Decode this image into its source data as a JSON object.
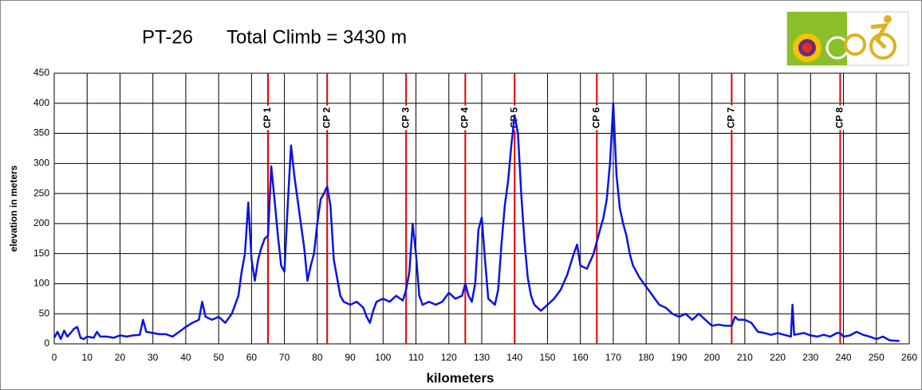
{
  "chart_data": {
    "type": "line",
    "title": "PT-26",
    "subtitle": "Total Climb = 3430 m",
    "x_label": "kilometers",
    "y_label": "elevation in meters",
    "xlim": [
      0,
      260
    ],
    "ylim": [
      0,
      450
    ],
    "xticks": [
      0,
      10,
      20,
      30,
      40,
      50,
      60,
      70,
      80,
      90,
      100,
      110,
      120,
      130,
      140,
      150,
      160,
      170,
      180,
      190,
      200,
      210,
      220,
      230,
      240,
      250,
      260
    ],
    "yticks": [
      0,
      50,
      100,
      150,
      200,
      250,
      300,
      350,
      400,
      450
    ],
    "grid": true,
    "checkpoints": {
      "color": "#e00000",
      "labels": [
        "CP 1",
        "CP 2",
        "CP 3",
        "CP 4",
        "CP 5",
        "CP 6",
        "CP 7",
        "CP 8"
      ],
      "x": [
        65,
        83,
        107,
        125,
        140,
        165,
        206,
        239
      ]
    },
    "series": [
      {
        "name": "elevation",
        "color": "#0a14e6",
        "x": [
          0,
          1,
          2,
          3,
          4,
          5,
          6,
          7,
          8,
          9,
          10,
          12,
          13,
          14,
          16,
          18,
          20,
          22,
          24,
          26,
          27,
          28,
          30,
          32,
          34,
          36,
          38,
          40,
          42,
          44,
          45,
          46,
          48,
          50,
          52,
          54,
          55,
          56,
          57,
          58,
          59,
          60,
          61,
          62,
          63,
          64,
          65,
          66,
          67,
          68,
          69,
          70,
          71,
          72,
          73,
          74,
          75,
          76,
          77,
          78,
          79,
          80,
          81,
          82,
          83,
          84,
          85,
          86,
          87,
          88,
          90,
          92,
          94,
          95,
          96,
          97,
          98,
          100,
          102,
          104,
          106,
          107,
          108,
          109,
          110,
          111,
          112,
          114,
          116,
          118,
          120,
          122,
          124,
          125,
          126,
          127,
          128,
          129,
          130,
          131,
          132,
          133,
          134,
          135,
          136,
          137,
          138,
          139,
          140,
          141,
          142,
          143,
          144,
          145,
          146,
          148,
          150,
          152,
          154,
          156,
          158,
          159,
          160,
          162,
          164,
          165,
          166,
          167,
          168,
          169,
          170,
          171,
          172,
          173,
          174,
          175,
          176,
          178,
          180,
          182,
          184,
          186,
          188,
          190,
          192,
          194,
          196,
          198,
          200,
          202,
          204,
          206,
          207,
          208,
          210,
          212,
          214,
          216,
          218,
          220,
          222,
          224,
          224.5,
          225,
          228,
          230,
          232,
          234,
          236,
          238,
          239,
          240,
          242,
          244,
          246,
          248,
          250,
          252,
          254,
          256,
          257
        ],
        "values": [
          10,
          20,
          8,
          22,
          12,
          18,
          25,
          28,
          10,
          8,
          12,
          10,
          20,
          12,
          12,
          10,
          14,
          12,
          14,
          15,
          40,
          20,
          18,
          16,
          16,
          12,
          20,
          28,
          35,
          40,
          70,
          45,
          40,
          45,
          35,
          50,
          65,
          80,
          120,
          150,
          235,
          140,
          105,
          140,
          160,
          175,
          180,
          295,
          240,
          180,
          130,
          120,
          230,
          330,
          280,
          240,
          200,
          160,
          105,
          130,
          150,
          200,
          240,
          250,
          262,
          230,
          140,
          110,
          80,
          70,
          65,
          70,
          60,
          45,
          35,
          55,
          70,
          75,
          70,
          80,
          72,
          90,
          120,
          200,
          150,
          80,
          65,
          70,
          65,
          70,
          85,
          75,
          80,
          100,
          80,
          70,
          100,
          190,
          210,
          140,
          75,
          70,
          65,
          90,
          165,
          230,
          270,
          330,
          380,
          350,
          250,
          170,
          110,
          80,
          65,
          55,
          65,
          75,
          90,
          115,
          150,
          165,
          130,
          125,
          150,
          170,
          190,
          210,
          240,
          300,
          400,
          280,
          225,
          200,
          180,
          150,
          130,
          110,
          95,
          80,
          65,
          60,
          50,
          45,
          50,
          40,
          50,
          40,
          30,
          32,
          30,
          30,
          45,
          40,
          40,
          35,
          20,
          18,
          15,
          18,
          15,
          12,
          65,
          15,
          18,
          14,
          12,
          15,
          12,
          18,
          18,
          12,
          14,
          20,
          15,
          12,
          8,
          12,
          6,
          5,
          5
        ]
      }
    ]
  }
}
